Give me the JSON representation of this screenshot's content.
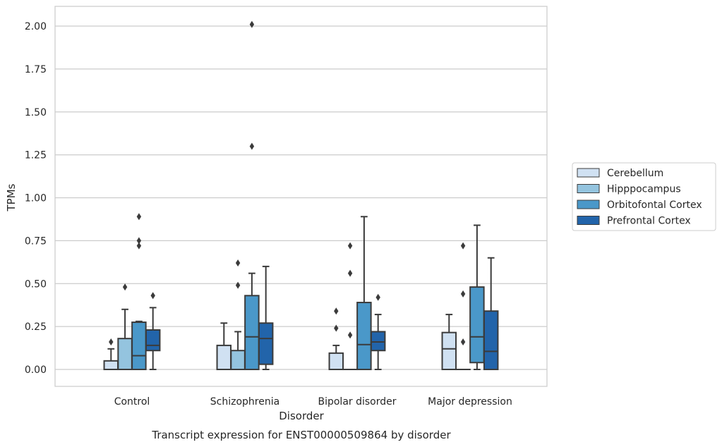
{
  "chart_data": {
    "type": "box",
    "caption": "Transcript expression for ENST00000509864 by disorder",
    "xlabel": "Disorder",
    "ylabel": "TPMs",
    "ylim": [
      -0.1,
      2.12
    ],
    "yticks": [
      "0.00",
      "0.25",
      "0.50",
      "0.75",
      "1.00",
      "1.25",
      "1.50",
      "1.75",
      "2.00"
    ],
    "grid": true,
    "legend_position": "right",
    "categories": [
      "Control",
      "Schizophrenia",
      "Bipolar disorder",
      "Major depression"
    ],
    "series": [
      {
        "name": "Cerebellum",
        "color": "#d0e1f2",
        "boxes": [
          {
            "whislo": 0.0,
            "q1": 0.0,
            "med": 0.0,
            "q3": 0.05,
            "whishi": 0.12,
            "fliers": [
              0.16
            ]
          },
          {
            "whislo": 0.0,
            "q1": 0.0,
            "med": 0.0,
            "q3": 0.14,
            "whishi": 0.27,
            "fliers": []
          },
          {
            "whislo": 0.0,
            "q1": 0.0,
            "med": 0.0,
            "q3": 0.095,
            "whishi": 0.14,
            "fliers": [
              0.24,
              0.34
            ]
          },
          {
            "whislo": 0.0,
            "q1": 0.0,
            "med": 0.12,
            "q3": 0.215,
            "whishi": 0.32,
            "fliers": []
          }
        ]
      },
      {
        "name": "Hipppocampus",
        "color": "#94c4df",
        "boxes": [
          {
            "whislo": 0.0,
            "q1": 0.0,
            "med": 0.0,
            "q3": 0.18,
            "whishi": 0.35,
            "fliers": [
              0.48
            ]
          },
          {
            "whislo": 0.0,
            "q1": 0.0,
            "med": 0.0,
            "q3": 0.11,
            "whishi": 0.22,
            "fliers": [
              0.49,
              0.62
            ]
          },
          {
            "whislo": 0.0,
            "q1": 0.0,
            "med": 0.0,
            "q3": 0.0,
            "whishi": 0.0,
            "fliers": [
              0.2,
              0.56,
              0.72
            ]
          },
          {
            "whislo": 0.0,
            "q1": 0.0,
            "med": 0.0,
            "q3": 0.0,
            "whishi": 0.0,
            "fliers": [
              0.16,
              0.44,
              0.72
            ]
          }
        ]
      },
      {
        "name": "Orbitofontal Cortex",
        "color": "#4a98c9",
        "boxes": [
          {
            "whislo": 0.0,
            "q1": 0.0,
            "med": 0.08,
            "q3": 0.275,
            "whishi": 0.28,
            "fliers": [
              0.72,
              0.75,
              0.89
            ]
          },
          {
            "whislo": 0.0,
            "q1": 0.0,
            "med": 0.19,
            "q3": 0.43,
            "whishi": 0.56,
            "fliers": [
              1.3,
              2.01
            ]
          },
          {
            "whislo": 0.0,
            "q1": 0.0,
            "med": 0.145,
            "q3": 0.39,
            "whishi": 0.89,
            "fliers": []
          },
          {
            "whislo": 0.0,
            "q1": 0.04,
            "med": 0.19,
            "q3": 0.48,
            "whishi": 0.84,
            "fliers": []
          }
        ]
      },
      {
        "name": "Prefrontal Cortex",
        "color": "#2264aa",
        "boxes": [
          {
            "whislo": 0.0,
            "q1": 0.11,
            "med": 0.14,
            "q3": 0.23,
            "whishi": 0.36,
            "fliers": [
              0.43
            ]
          },
          {
            "whislo": 0.0,
            "q1": 0.03,
            "med": 0.18,
            "q3": 0.27,
            "whishi": 0.6,
            "fliers": []
          },
          {
            "whislo": 0.0,
            "q1": 0.11,
            "med": 0.16,
            "q3": 0.22,
            "whishi": 0.32,
            "fliers": [
              0.42
            ]
          },
          {
            "whislo": 0.0,
            "q1": 0.0,
            "med": 0.105,
            "q3": 0.34,
            "whishi": 0.65,
            "fliers": []
          }
        ]
      }
    ]
  }
}
